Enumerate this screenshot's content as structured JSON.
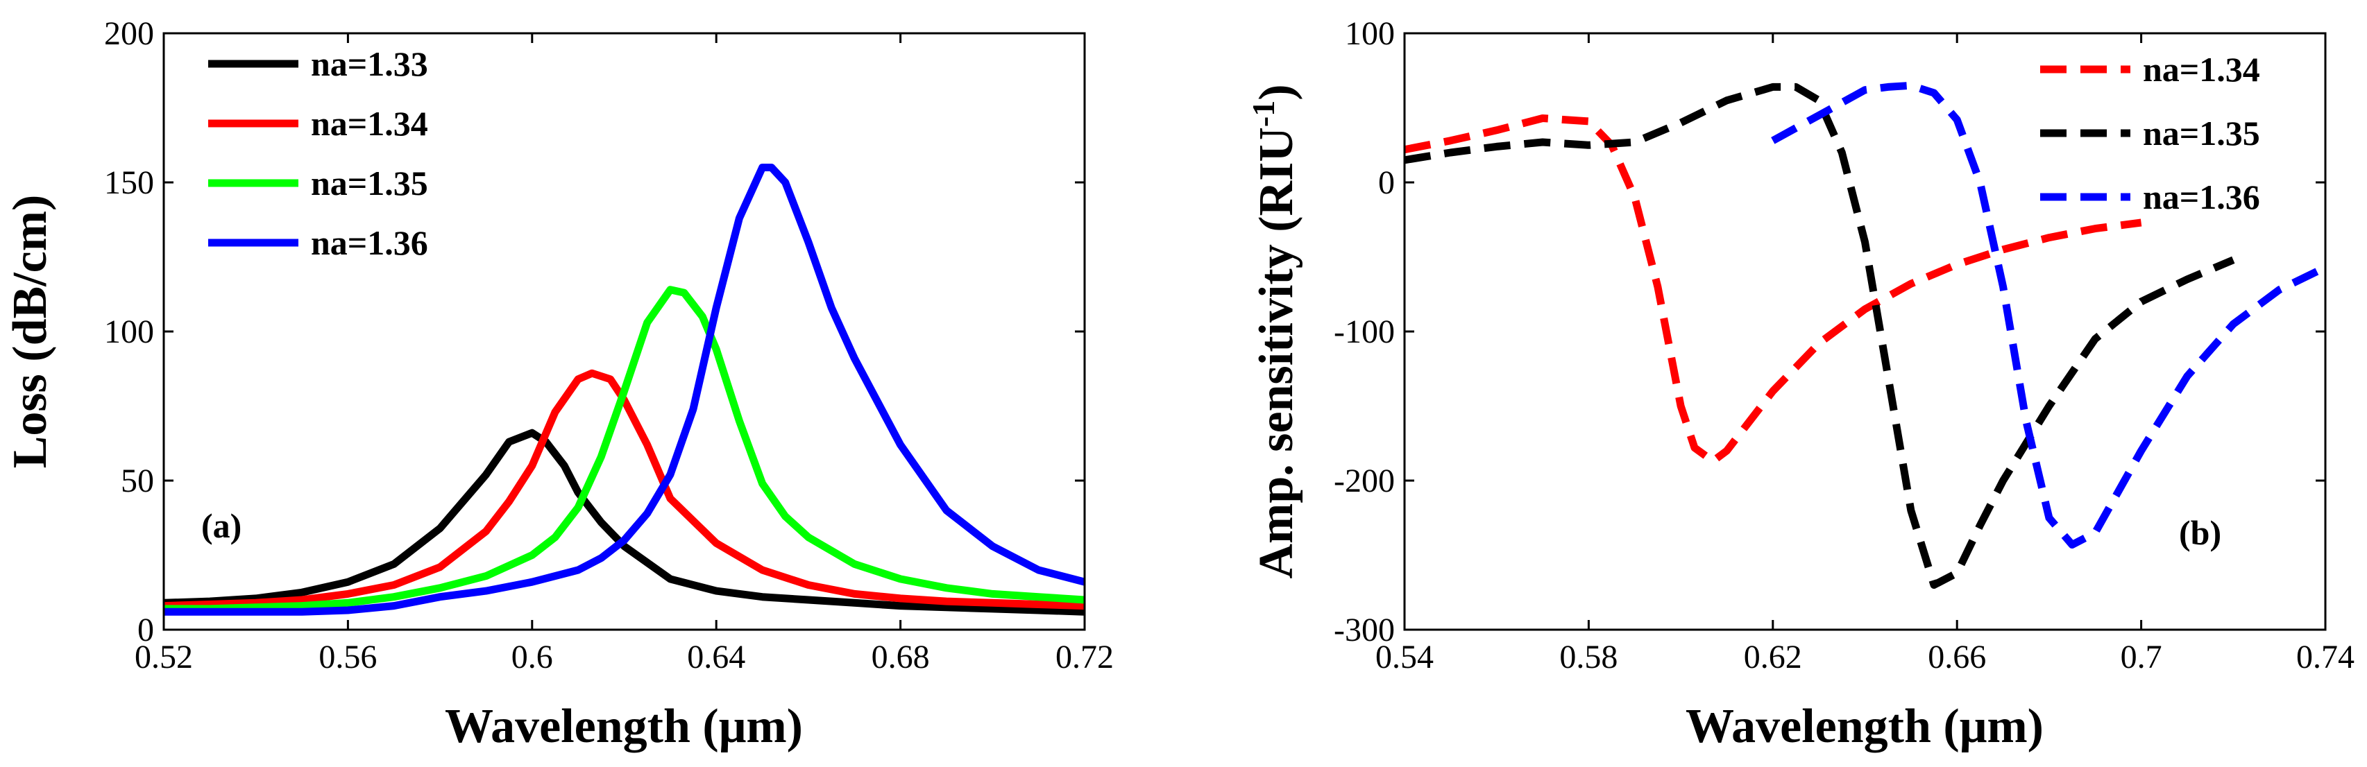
{
  "chart_data": [
    {
      "type": "line",
      "panel": "(a)",
      "xlabel": "Wavelength (μm)",
      "ylabel": "Loss (dB/cm)",
      "xlim": [
        0.52,
        0.72
      ],
      "ylim": [
        0,
        200
      ],
      "xticks": [
        0.52,
        0.56,
        0.6,
        0.64,
        0.68,
        0.72
      ],
      "xtick_labels": [
        "0.52",
        "0.56",
        "0.6",
        "0.64",
        "0.68",
        "0.72"
      ],
      "yticks": [
        0,
        50,
        100,
        150,
        200
      ],
      "ytick_labels": [
        "0",
        "50",
        "100",
        "150",
        "200"
      ],
      "legend_position": "top-left",
      "series": [
        {
          "name": "na=1.33",
          "color": "#000000",
          "dash": "solid",
          "x": [
            0.52,
            0.53,
            0.54,
            0.55,
            0.56,
            0.57,
            0.58,
            0.59,
            0.595,
            0.6,
            0.603,
            0.607,
            0.61,
            0.615,
            0.62,
            0.63,
            0.64,
            0.65,
            0.66,
            0.67,
            0.68,
            0.69,
            0.7,
            0.71,
            0.72
          ],
          "y": [
            9,
            9.5,
            10.5,
            12.5,
            16,
            22,
            34,
            52,
            63,
            66,
            63,
            55,
            46,
            36,
            28,
            17,
            13,
            11,
            10,
            9,
            8,
            7.5,
            7,
            6.5,
            6
          ]
        },
        {
          "name": "na=1.34",
          "color": "#ff0000",
          "dash": "solid",
          "x": [
            0.52,
            0.53,
            0.54,
            0.55,
            0.56,
            0.57,
            0.58,
            0.59,
            0.595,
            0.6,
            0.605,
            0.61,
            0.613,
            0.617,
            0.62,
            0.625,
            0.63,
            0.64,
            0.65,
            0.66,
            0.67,
            0.68,
            0.69,
            0.7,
            0.71,
            0.72
          ],
          "y": [
            8,
            8.5,
            9,
            10,
            12,
            15,
            21,
            33,
            43,
            55,
            73,
            84,
            86,
            84,
            77,
            62,
            44,
            29,
            20,
            15,
            12,
            10.5,
            9.5,
            9,
            8.5,
            8
          ]
        },
        {
          "name": "na=1.35",
          "color": "#00ff00",
          "dash": "solid",
          "x": [
            0.52,
            0.53,
            0.54,
            0.55,
            0.56,
            0.57,
            0.58,
            0.59,
            0.6,
            0.605,
            0.61,
            0.615,
            0.62,
            0.625,
            0.63,
            0.633,
            0.637,
            0.64,
            0.645,
            0.65,
            0.655,
            0.66,
            0.67,
            0.68,
            0.69,
            0.7,
            0.71,
            0.72
          ],
          "y": [
            7,
            7,
            7.5,
            8,
            9,
            11,
            14,
            18,
            25,
            31,
            41,
            58,
            80,
            103,
            114,
            113,
            105,
            94,
            70,
            49,
            38,
            31,
            22,
            17,
            14,
            12,
            11,
            10
          ]
        },
        {
          "name": "na=1.36",
          "color": "#0000ff",
          "dash": "solid",
          "x": [
            0.52,
            0.53,
            0.54,
            0.55,
            0.56,
            0.57,
            0.58,
            0.59,
            0.6,
            0.61,
            0.615,
            0.62,
            0.625,
            0.63,
            0.635,
            0.64,
            0.645,
            0.65,
            0.652,
            0.655,
            0.66,
            0.665,
            0.67,
            0.68,
            0.69,
            0.7,
            0.71,
            0.72
          ],
          "y": [
            6,
            6,
            6,
            6,
            6.5,
            8,
            11,
            13,
            16,
            20,
            24,
            30,
            39,
            52,
            74,
            108,
            138,
            155,
            155,
            150,
            130,
            108,
            91,
            62,
            40,
            28,
            20,
            16
          ]
        }
      ]
    },
    {
      "type": "line",
      "panel": "(b)",
      "xlabel": "Wavelength (μm)",
      "ylabel_main": "Amp. sensitivity (RIU",
      "ylabel_sup": "-1",
      "ylabel_close": ")",
      "xlim": [
        0.54,
        0.74
      ],
      "ylim": [
        -300,
        100
      ],
      "xticks": [
        0.54,
        0.58,
        0.62,
        0.66,
        0.7,
        0.74
      ],
      "xtick_labels": [
        "0.54",
        "0.58",
        "0.62",
        "0.66",
        "0.7",
        "0.74"
      ],
      "yticks": [
        -300,
        -200,
        -100,
        0,
        100
      ],
      "ytick_labels": [
        "-300",
        "-200",
        "-100",
        "0",
        "100"
      ],
      "legend_position": "top-right",
      "series": [
        {
          "name": "na=1.34",
          "color": "#ff0000",
          "dash": "dashed",
          "x": [
            0.54,
            0.55,
            0.56,
            0.57,
            0.58,
            0.585,
            0.59,
            0.595,
            0.6,
            0.603,
            0.607,
            0.61,
            0.615,
            0.62,
            0.63,
            0.64,
            0.65,
            0.66,
            0.67,
            0.68,
            0.69,
            0.7
          ],
          "y": [
            22,
            28,
            35,
            43,
            41,
            25,
            -10,
            -70,
            -150,
            -178,
            -187,
            -180,
            -160,
            -140,
            -108,
            -85,
            -68,
            -55,
            -45,
            -37,
            -31,
            -27
          ]
        },
        {
          "name": "na=1.35",
          "color": "#000000",
          "dash": "dashed",
          "x": [
            0.54,
            0.55,
            0.56,
            0.57,
            0.58,
            0.59,
            0.6,
            0.61,
            0.62,
            0.625,
            0.63,
            0.635,
            0.64,
            0.645,
            0.65,
            0.655,
            0.66,
            0.665,
            0.67,
            0.68,
            0.69,
            0.7,
            0.71,
            0.72
          ],
          "y": [
            15,
            20,
            24,
            27,
            25,
            27,
            40,
            55,
            64,
            64,
            55,
            20,
            -40,
            -130,
            -220,
            -270,
            -262,
            -230,
            -200,
            -150,
            -105,
            -80,
            -65,
            -52
          ]
        },
        {
          "name": "na=1.36",
          "color": "#0000ff",
          "dash": "dashed",
          "x": [
            0.62,
            0.63,
            0.64,
            0.645,
            0.65,
            0.655,
            0.66,
            0.665,
            0.67,
            0.675,
            0.68,
            0.685,
            0.69,
            0.7,
            0.71,
            0.72,
            0.73,
            0.74
          ],
          "y": [
            28,
            45,
            62,
            64,
            65,
            60,
            42,
            0,
            -70,
            -160,
            -225,
            -243,
            -235,
            -180,
            -130,
            -95,
            -72,
            -57
          ]
        }
      ]
    }
  ]
}
